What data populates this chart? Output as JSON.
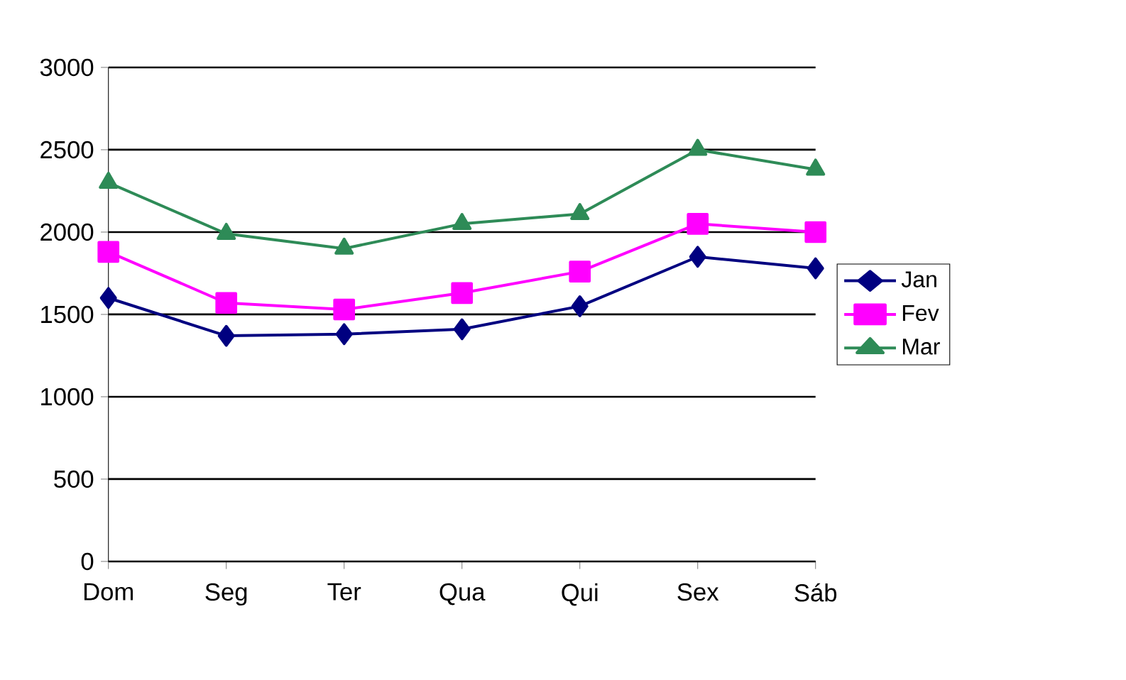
{
  "chart_data": {
    "type": "line",
    "categories": [
      "Dom",
      "Seg",
      "Ter",
      "Qua",
      "Qui",
      "Sex",
      "Sáb"
    ],
    "series": [
      {
        "name": "Jan",
        "color": "#000080",
        "marker": "diamond",
        "values": [
          1600,
          1370,
          1380,
          1410,
          1550,
          1850,
          1780
        ]
      },
      {
        "name": "Fev",
        "color": "#ff00ff",
        "marker": "square",
        "values": [
          1880,
          1570,
          1530,
          1630,
          1760,
          2050,
          2000
        ]
      },
      {
        "name": "Mar",
        "color": "#2e8b57",
        "marker": "triangle",
        "values": [
          2300,
          1990,
          1900,
          2050,
          2110,
          2500,
          2380
        ]
      }
    ],
    "ylim": [
      0,
      3000
    ],
    "yticks": [
      0,
      500,
      1000,
      1500,
      2000,
      2500,
      3000
    ],
    "grid": "y",
    "legend": "right",
    "line_style": "solid"
  }
}
